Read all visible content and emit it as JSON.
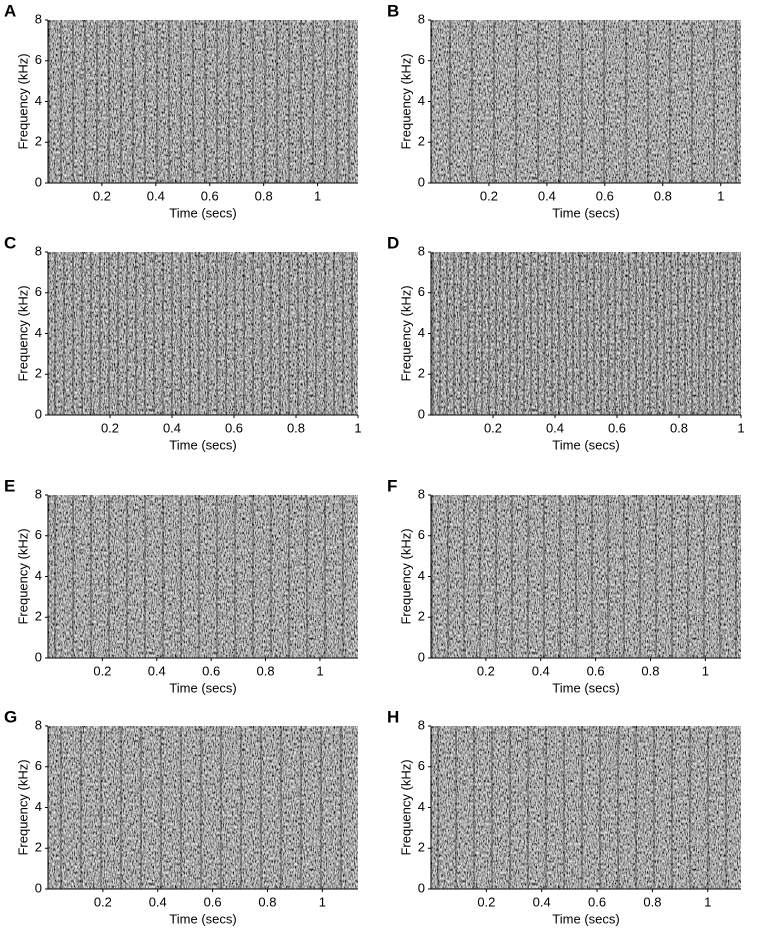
{
  "chart_data": [
    {
      "type": "spectrogram",
      "panel": "A",
      "xlabel": "Time (secs)",
      "ylabel": "Frequency (kHz)",
      "xlim": [
        0,
        1.15
      ],
      "ylim": [
        0,
        8
      ],
      "xticks": [
        0.2,
        0.4,
        0.6,
        0.8,
        1
      ],
      "yticks": [
        0,
        2,
        4,
        6,
        8
      ]
    },
    {
      "type": "spectrogram",
      "panel": "B",
      "xlabel": "Time (secs)",
      "ylabel": "Frequency (kHz)",
      "xlim": [
        0,
        1.07
      ],
      "ylim": [
        0,
        8
      ],
      "xticks": [
        0.2,
        0.4,
        0.6,
        0.8,
        1
      ],
      "yticks": [
        0,
        2,
        4,
        6,
        8
      ]
    },
    {
      "type": "spectrogram",
      "panel": "C",
      "xlabel": "Time (secs)",
      "ylabel": "Frequency (kHz)",
      "xlim": [
        0,
        1.0
      ],
      "ylim": [
        0,
        8
      ],
      "xticks": [
        0.2,
        0.4,
        0.6,
        0.8,
        1
      ],
      "yticks": [
        0,
        2,
        4,
        6,
        8
      ]
    },
    {
      "type": "spectrogram",
      "panel": "D",
      "xlabel": "Time (secs)",
      "ylabel": "Frequency (kHz)",
      "xlim": [
        0,
        1.0
      ],
      "ylim": [
        0,
        8
      ],
      "xticks": [
        0.2,
        0.4,
        0.6,
        0.8,
        1
      ],
      "yticks": [
        0,
        2,
        4,
        6,
        8
      ]
    },
    {
      "type": "spectrogram",
      "panel": "E",
      "xlabel": "Time (secs)",
      "ylabel": "Frequency (kHz)",
      "xlim": [
        0,
        1.14
      ],
      "ylim": [
        0,
        8
      ],
      "xticks": [
        0.2,
        0.4,
        0.6,
        0.8,
        1
      ],
      "yticks": [
        0,
        2,
        4,
        6,
        8
      ]
    },
    {
      "type": "spectrogram",
      "panel": "F",
      "xlabel": "Time (secs)",
      "ylabel": "Frequency (kHz)",
      "xlim": [
        0,
        1.13
      ],
      "ylim": [
        0,
        8
      ],
      "xticks": [
        0.2,
        0.4,
        0.6,
        0.8,
        1
      ],
      "yticks": [
        0,
        2,
        4,
        6,
        8
      ]
    },
    {
      "type": "spectrogram",
      "panel": "G",
      "xlabel": "Time (secs)",
      "ylabel": "Frequency (kHz)",
      "xlim": [
        0,
        1.13
      ],
      "ylim": [
        0,
        8
      ],
      "xticks": [
        0.2,
        0.4,
        0.6,
        0.8,
        1
      ],
      "yticks": [
        0,
        2,
        4,
        6,
        8
      ]
    },
    {
      "type": "spectrogram",
      "panel": "H",
      "xlabel": "Time (secs)",
      "ylabel": "Frequency (kHz)",
      "xlim": [
        0,
        1.12
      ],
      "ylim": [
        0,
        8
      ],
      "xticks": [
        0.2,
        0.4,
        0.6,
        0.8,
        1
      ],
      "yticks": [
        0,
        2,
        4,
        6,
        8
      ]
    }
  ]
}
